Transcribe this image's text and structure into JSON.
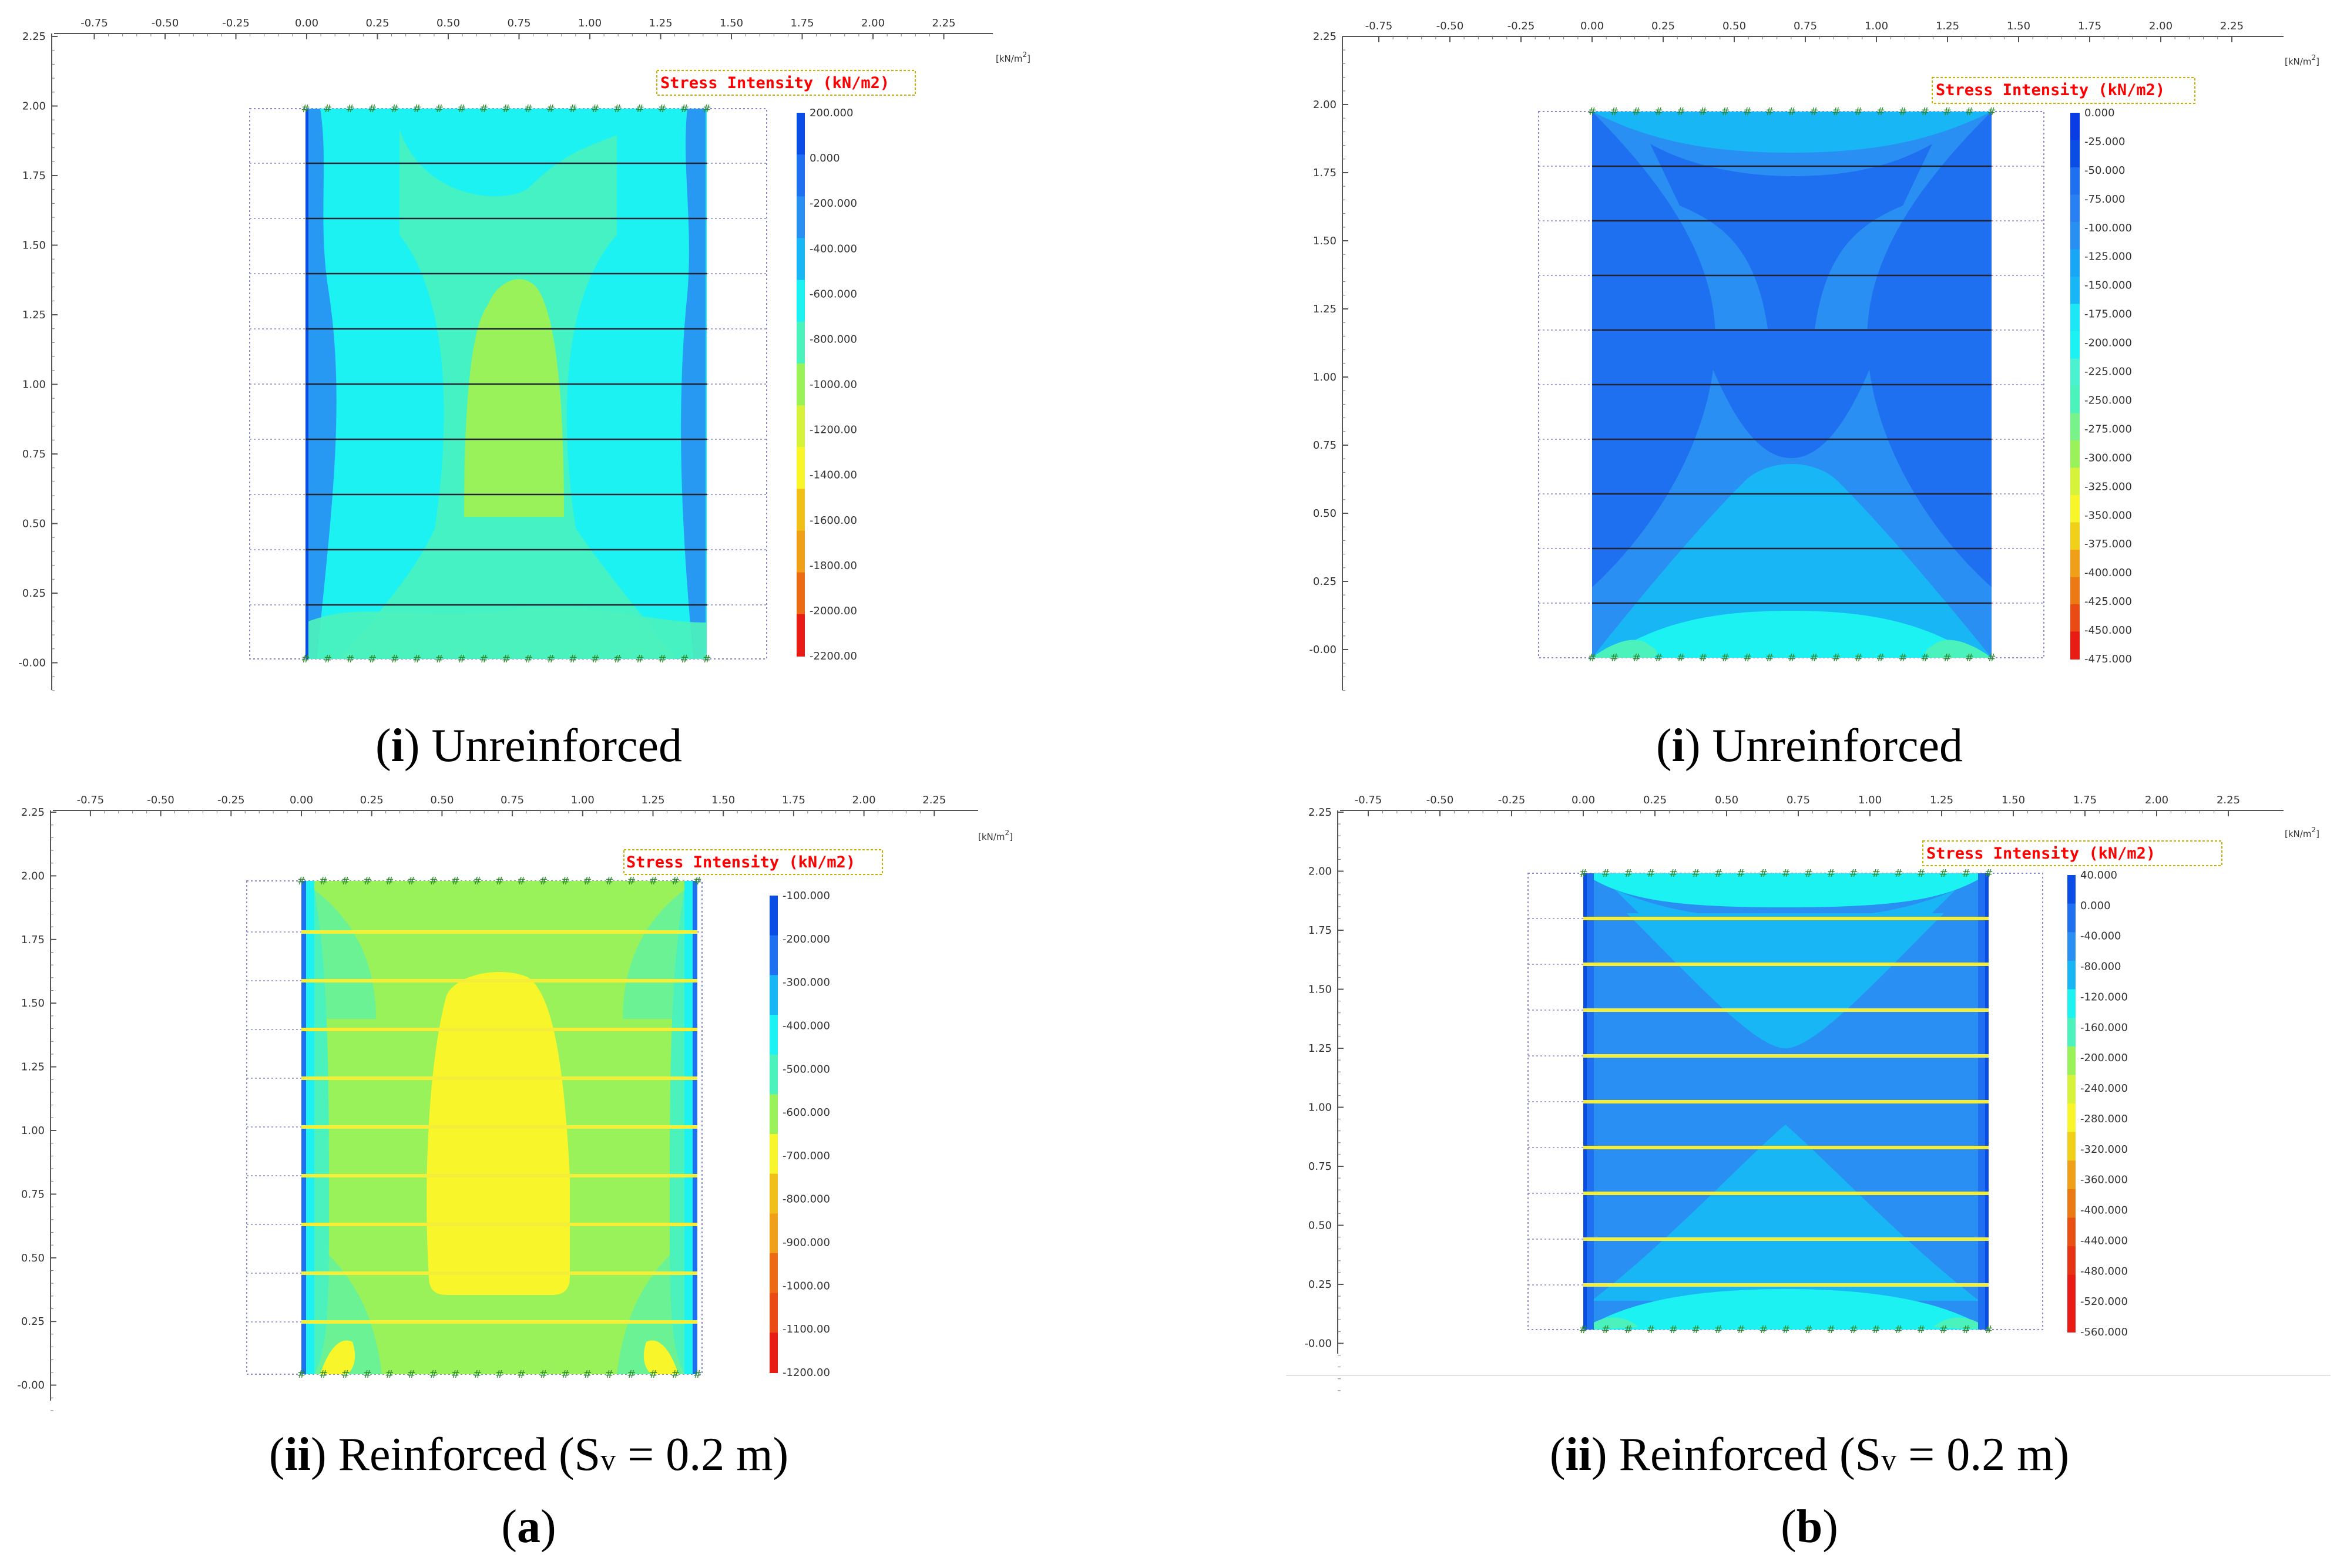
{
  "colors": {
    "blue_dark": "#0a4ce6",
    "blue": "#1f70f0",
    "blue_mid": "#2a8ff2",
    "sky": "#18b6f5",
    "cyan": "#1df2f2",
    "mint": "#4cf2bc",
    "lime": "#9af25a",
    "yellow": "#f8f52a",
    "orange": "#f0a018",
    "red": "#e81c14",
    "reinforcement": "#f4ee38",
    "axis": "#555555"
  },
  "panels": [
    {
      "id": "a-i",
      "unit_label": "[kN/m",
      "unit_exp": "2",
      "x_ticks": [
        "-0.75",
        "-0.50",
        "-0.25",
        "0.00",
        "0.25",
        "0.50",
        "0.75",
        "1.00",
        "1.25",
        "1.50",
        "1.75",
        "2.00",
        "2.25"
      ],
      "y_ticks": [
        "2.25",
        "2.00",
        "1.75",
        "1.50",
        "1.25",
        "1.00",
        "0.75",
        "0.50",
        "0.25",
        "-0.00"
      ],
      "title": "Stress Intensity (kN/m2)",
      "legend": [
        "200.000",
        "0.000",
        "-200.000",
        "-400.000",
        "-600.000",
        "-800.000",
        "-1000.00",
        "-1200.00",
        "-1400.00",
        "-1600.00",
        "-1800.00",
        "-2000.00",
        "-2200.00"
      ],
      "caption": {
        "num": "i",
        "text": " Unreinforced"
      }
    },
    {
      "id": "b-i",
      "unit_label": "[kN/m",
      "unit_exp": "2",
      "x_ticks": [
        "-0.75",
        "-0.50",
        "-0.25",
        "0.00",
        "0.25",
        "0.50",
        "0.75",
        "1.00",
        "1.25",
        "1.50",
        "1.75",
        "2.00",
        "2.25"
      ],
      "y_ticks": [
        "2.25",
        "2.00",
        "1.75",
        "1.50",
        "1.25",
        "1.00",
        "0.75",
        "0.50",
        "0.25",
        "-0.00"
      ],
      "title": "Stress Intensity (kN/m2)",
      "legend": [
        "0.000",
        "-25.000",
        "-50.000",
        "-75.000",
        "-100.000",
        "-125.000",
        "-150.000",
        "-175.000",
        "-200.000",
        "-225.000",
        "-250.000",
        "-275.000",
        "-300.000",
        "-325.000",
        "-350.000",
        "-375.000",
        "-400.000",
        "-425.000",
        "-450.000",
        "-475.000"
      ],
      "caption": {
        "num": "i",
        "text": " Unreinforced"
      }
    },
    {
      "id": "a-ii",
      "unit_label": "[kN/m",
      "unit_exp": "2",
      "x_ticks": [
        "-0.75",
        "-0.50",
        "-0.25",
        "0.00",
        "0.25",
        "0.50",
        "0.75",
        "1.00",
        "1.25",
        "1.50",
        "1.75",
        "2.00",
        "2.25"
      ],
      "y_ticks": [
        "2.25",
        "2.00",
        "1.75",
        "1.50",
        "1.25",
        "1.00",
        "0.75",
        "0.50",
        "0.25",
        "-0.00"
      ],
      "title": "Stress Intensity (kN/m2)",
      "legend": [
        "-100.000",
        "-200.000",
        "-300.000",
        "-400.000",
        "-500.000",
        "-600.000",
        "-700.000",
        "-800.000",
        "-900.000",
        "-1000.00",
        "-1100.00",
        "-1200.00"
      ],
      "caption": {
        "num": "ii",
        "text": " Reinforced (S",
        "sub": "v",
        "tail": " = 0.2 m)"
      }
    },
    {
      "id": "b-ii",
      "unit_label": "[kN/m",
      "unit_exp": "2",
      "x_ticks": [
        "-0.75",
        "-0.50",
        "-0.25",
        "0.00",
        "0.25",
        "0.50",
        "0.75",
        "1.00",
        "1.25",
        "1.50",
        "1.75",
        "2.00",
        "2.25"
      ],
      "y_ticks": [
        "2.25",
        "2.00",
        "1.75",
        "1.50",
        "1.25",
        "1.00",
        "0.75",
        "0.50",
        "0.25",
        "-0.00"
      ],
      "title": "Stress Intensity (kN/m2)",
      "legend": [
        "40.000",
        "0.000",
        "-40.000",
        "-80.000",
        "-120.000",
        "-160.000",
        "-200.000",
        "-240.000",
        "-280.000",
        "-320.000",
        "-360.000",
        "-400.000",
        "-440.000",
        "-480.000",
        "-520.000",
        "-560.000"
      ],
      "caption": {
        "num": "ii",
        "text": " Reinforced (S",
        "sub": "v",
        "tail": " = 0.2 m)"
      }
    }
  ],
  "column_labels": {
    "a": "a",
    "b": "b"
  }
}
